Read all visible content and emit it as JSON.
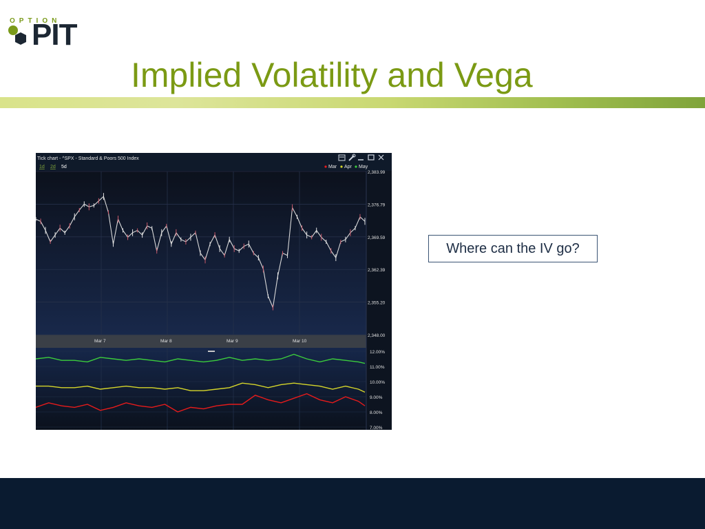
{
  "logo": {
    "top_text": "OPTION",
    "main_text": "PIT"
  },
  "slide": {
    "title": "Implied Volatility and Vega",
    "callout": "Where can the IV go?"
  },
  "colors": {
    "title": "#7b9a14",
    "footer": "#0a1b30",
    "chart_bg": "#0d1420"
  },
  "chart_window": {
    "title": "Tick chart - ^SPX - Standard & Poors 500 Index",
    "range_tabs": [
      "1d",
      "2d",
      "5d"
    ],
    "window_icons": [
      "print-icon",
      "wrench-icon",
      "minimize-icon",
      "maximize-icon",
      "close-icon"
    ]
  },
  "chart_data": [
    {
      "type": "line",
      "title": "Tick chart - ^SPX - Standard & Poors 500 Index",
      "x_ticks": [
        "Mar 7",
        "Mar 8",
        "Mar 9",
        "Mar 10"
      ],
      "y_ticks": [
        "2,383.99",
        "2,376.79",
        "2,369.59",
        "2,362.39",
        "2,355.20",
        "2,348.00"
      ],
      "ylim": [
        2348.0,
        2383.99
      ],
      "grid": true,
      "series": [
        {
          "color": "#d9d9d9",
          "x": [
            0,
            1.5,
            3,
            4.5,
            6,
            7.5,
            9,
            10.5,
            12,
            13.5,
            15,
            16.5,
            18,
            19.5,
            21,
            22.5,
            24,
            25.5,
            27,
            28.5,
            30,
            31.5,
            33,
            34.5,
            36,
            37.5,
            39,
            40.5,
            42,
            43.5,
            45,
            46.5,
            48,
            49.5,
            51,
            52.5,
            54,
            55.5,
            57,
            58.5,
            60,
            61.5,
            63,
            64.5,
            66,
            67.5,
            69,
            70.5,
            72,
            73.5,
            75,
            76.5,
            78,
            79.5,
            81,
            82.5,
            84,
            85.5,
            87,
            88.5,
            90,
            91.5,
            93,
            94.5,
            96,
            97.5,
            99,
            100.5,
            102
          ],
          "values": [
            2373.5,
            2373.0,
            2371.0,
            2368.5,
            2370.0,
            2371.5,
            2370.5,
            2372.0,
            2374.0,
            2375.5,
            2376.8,
            2376.2,
            2376.5,
            2377.5,
            2378.5,
            2375.0,
            2368.0,
            2373.5,
            2371.0,
            2369.5,
            2370.5,
            2371.0,
            2370.0,
            2372.0,
            2371.5,
            2366.5,
            2370.5,
            2372.0,
            2368.0,
            2370.5,
            2369.0,
            2368.5,
            2369.5,
            2370.5,
            2366.0,
            2364.5,
            2368.0,
            2370.0,
            2367.0,
            2365.5,
            2369.0,
            2367.0,
            2366.5,
            2367.5,
            2368.0,
            2366.0,
            2365.0,
            2362.5,
            2356.5,
            2354.0,
            2361.0,
            2366.0,
            2365.5,
            2376.0,
            2374.0,
            2371.5,
            2370.0,
            2369.5,
            2371.0,
            2369.5,
            2368.5,
            2366.5,
            2365.0,
            2368.5,
            2369.0,
            2370.5,
            2371.5,
            2374.0,
            2373.0
          ]
        }
      ]
    },
    {
      "type": "line",
      "y_ticks": [
        "12.00%",
        "11.00%",
        "10.00%",
        "9.00%",
        "8.00%",
        "7.00%"
      ],
      "ylim": [
        7.0,
        12.0
      ],
      "grid": true,
      "legend": "top-right",
      "series": [
        {
          "name": "Mar",
          "color": "#e81b1b",
          "x": [
            0,
            4,
            8,
            12,
            16,
            20,
            24,
            28,
            32,
            36,
            40,
            44,
            48,
            52,
            56,
            60,
            64,
            68,
            72,
            76,
            80,
            84,
            88,
            92,
            96,
            100,
            102
          ],
          "values": [
            8.3,
            8.6,
            8.4,
            8.3,
            8.5,
            8.1,
            8.3,
            8.6,
            8.4,
            8.3,
            8.5,
            8.0,
            8.3,
            8.2,
            8.4,
            8.5,
            8.5,
            9.1,
            8.8,
            8.6,
            8.9,
            9.2,
            8.8,
            8.6,
            9.0,
            8.7,
            8.4
          ]
        },
        {
          "name": "Apr",
          "color": "#d6d62a",
          "x": [
            0,
            4,
            8,
            12,
            16,
            20,
            24,
            28,
            32,
            36,
            40,
            44,
            48,
            52,
            56,
            60,
            64,
            68,
            72,
            76,
            80,
            84,
            88,
            92,
            96,
            100,
            102
          ],
          "values": [
            9.7,
            9.7,
            9.6,
            9.6,
            9.7,
            9.5,
            9.6,
            9.7,
            9.6,
            9.6,
            9.5,
            9.6,
            9.4,
            9.4,
            9.5,
            9.6,
            9.9,
            9.8,
            9.6,
            9.8,
            9.9,
            9.8,
            9.7,
            9.5,
            9.7,
            9.5,
            9.3
          ]
        },
        {
          "name": "May",
          "color": "#3ccd3c",
          "x": [
            0,
            4,
            8,
            12,
            16,
            20,
            24,
            28,
            32,
            36,
            40,
            44,
            48,
            52,
            56,
            60,
            64,
            68,
            72,
            76,
            80,
            84,
            88,
            92,
            96,
            100,
            102
          ],
          "values": [
            11.5,
            11.6,
            11.4,
            11.4,
            11.3,
            11.6,
            11.5,
            11.4,
            11.5,
            11.4,
            11.3,
            11.5,
            11.4,
            11.3,
            11.4,
            11.6,
            11.4,
            11.5,
            11.4,
            11.5,
            11.8,
            11.5,
            11.3,
            11.5,
            11.4,
            11.3,
            11.2
          ]
        }
      ]
    }
  ]
}
